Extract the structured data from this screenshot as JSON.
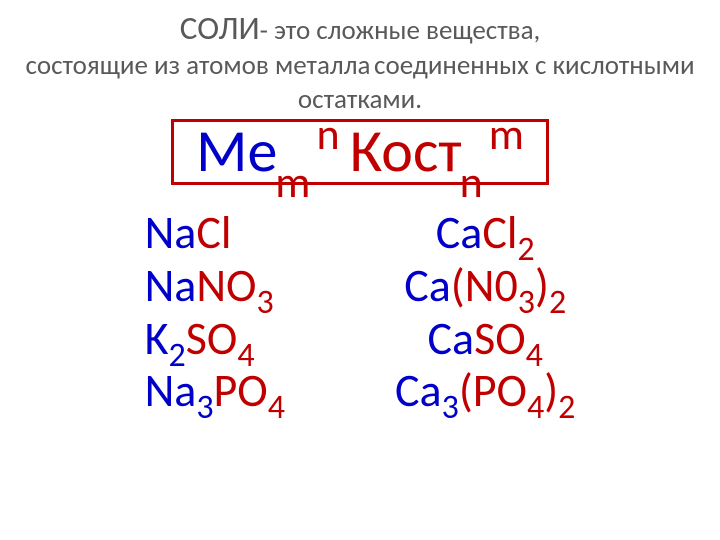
{
  "colors": {
    "title_gray": "#595959",
    "metal_blue": "#0000c8",
    "acid_red": "#c00000",
    "border_red": "#c00000",
    "background": "#ffffff"
  },
  "typography": {
    "title_main_fontsize": 33,
    "title_rest_fontsize": 27,
    "general_formula_fontsize": 60,
    "general_subsup_fontsize": 44,
    "example_fontsize": 46,
    "example_sub_fontsize": 34
  },
  "title": {
    "main": "СОЛИ",
    "rest_line1": "- это сложные вещества,",
    "rest_line2": "состоящие из атомов металла",
    "rest_line3": "соединенных с кислотными остатками."
  },
  "general_formula": {
    "metal": "Ме",
    "metal_sub": "m",
    "metal_sup": "n",
    "acid_rest": "Кост",
    "acid_sub": "n",
    "acid_sup": "m"
  },
  "examples": {
    "left": [
      {
        "parts": [
          {
            "t": "Na",
            "c": "metal"
          },
          {
            "t": "Cl",
            "c": "acid"
          }
        ]
      },
      {
        "parts": [
          {
            "t": "Na",
            "c": "metal"
          },
          {
            "t": "NO",
            "c": "acid"
          },
          {
            "t": "3",
            "c": "acid",
            "sub": true
          }
        ]
      },
      {
        "parts": [
          {
            "t": "K",
            "c": "metal"
          },
          {
            "t": "2",
            "c": "metal",
            "sub": true
          },
          {
            "t": "SO",
            "c": "acid"
          },
          {
            "t": "4",
            "c": "acid",
            "sub": true
          }
        ]
      },
      {
        "parts": [
          {
            "t": "Na",
            "c": "metal"
          },
          {
            "t": "3",
            "c": "metal",
            "sub": true
          },
          {
            "t": "PO",
            "c": "acid"
          },
          {
            "t": "4",
            "c": "acid",
            "sub": true
          }
        ]
      }
    ],
    "right": [
      {
        "parts": [
          {
            "t": "Ca",
            "c": "metal"
          },
          {
            "t": "Cl",
            "c": "acid"
          },
          {
            "t": "2",
            "c": "acid",
            "sub": true
          }
        ]
      },
      {
        "parts": [
          {
            "t": "Ca",
            "c": "metal"
          },
          {
            "t": "(N0",
            "c": "acid"
          },
          {
            "t": "3",
            "c": "acid",
            "sub": true
          },
          {
            "t": ")",
            "c": "acid"
          },
          {
            "t": "2",
            "c": "acid",
            "sub": true
          }
        ]
      },
      {
        "parts": [
          {
            "t": "Ca",
            "c": "metal"
          },
          {
            "t": "SO",
            "c": "acid"
          },
          {
            "t": "4",
            "c": "acid",
            "sub": true
          }
        ]
      },
      {
        "parts": [
          {
            "t": "Ca",
            "c": "metal"
          },
          {
            "t": "3",
            "c": "metal",
            "sub": true
          },
          {
            "t": "(PO",
            "c": "acid"
          },
          {
            "t": "4",
            "c": "acid",
            "sub": true
          },
          {
            "t": ")",
            "c": "acid"
          },
          {
            "t": "2",
            "c": "acid",
            "sub": true
          }
        ]
      }
    ]
  }
}
